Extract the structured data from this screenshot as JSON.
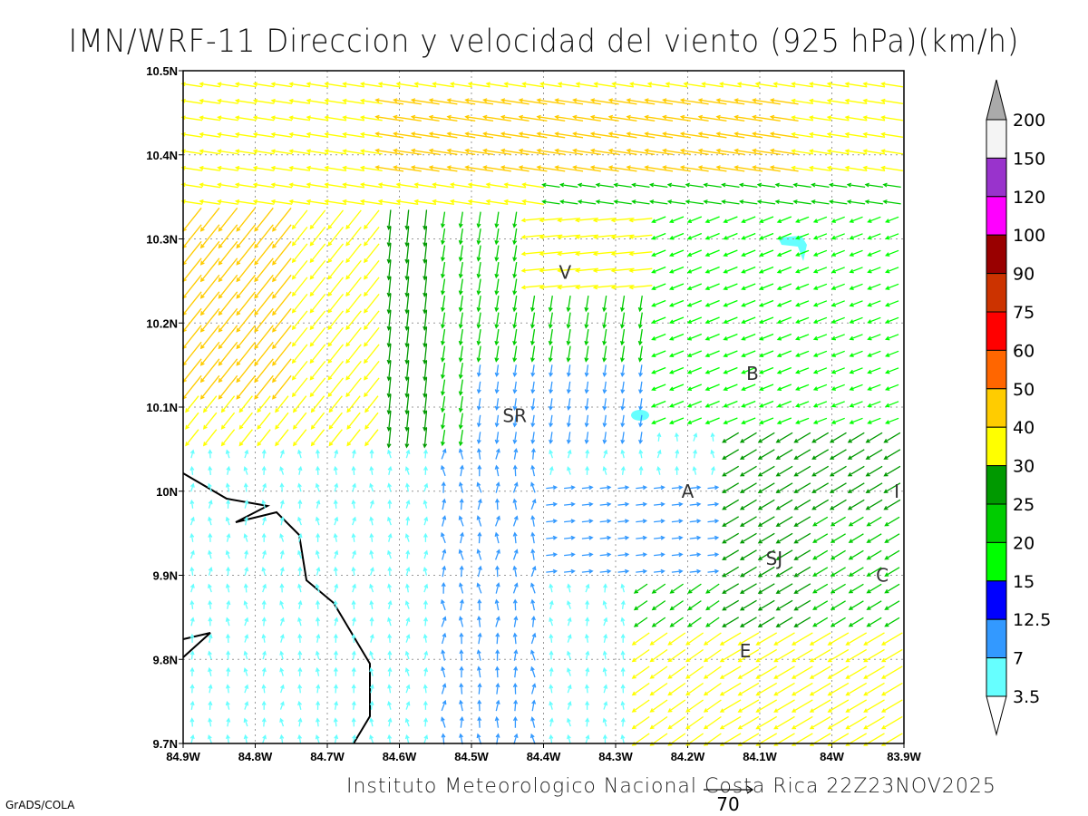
{
  "title": "IMN/WRF-11 Direccion y velocidad del viento (925 hPa)(km/h)",
  "footer": "Instituto Meteorologico Nacional Costa Rica  22Z23NOV2025",
  "credit": "GrADS/COLA",
  "reference_vector": {
    "label": "70",
    "speed": 70
  },
  "map": {
    "lon_range": [
      -84.9,
      -83.9
    ],
    "lat_range": [
      9.7,
      10.5
    ],
    "x_ticks": [
      "84.9W",
      "84.8W",
      "84.7W",
      "84.6W",
      "84.5W",
      "84.4W",
      "84.3W",
      "84.2W",
      "84.1W",
      "84W",
      "83.9W"
    ],
    "y_ticks": [
      "10.5N",
      "10.4N",
      "10.3N",
      "10.2N",
      "10.1N",
      "10N",
      "9.9N",
      "9.8N",
      "9.7N"
    ],
    "cities": [
      {
        "label": "V",
        "lon": -84.37,
        "lat": 10.26
      },
      {
        "label": "B",
        "lon": -84.11,
        "lat": 10.14
      },
      {
        "label": "SR",
        "lon": -84.44,
        "lat": 10.09
      },
      {
        "label": "A",
        "lon": -84.2,
        "lat": 10.0
      },
      {
        "label": "SJ",
        "lon": -84.08,
        "lat": 9.92
      },
      {
        "label": "C",
        "lon": -83.93,
        "lat": 9.9
      },
      {
        "label": "E",
        "lon": -84.12,
        "lat": 9.81
      },
      {
        "label": "I",
        "lon": -83.91,
        "lat": 10.0
      }
    ]
  },
  "colorbar": {
    "labels": [
      "200",
      "150",
      "120",
      "100",
      "90",
      "75",
      "60",
      "50",
      "40",
      "30",
      "25",
      "20",
      "15",
      "12.5",
      "7",
      "3.5"
    ],
    "colors": [
      "#f4f4f4",
      "#9933cc",
      "#ff00ff",
      "#990000",
      "#cc3300",
      "#ff0000",
      "#ff6600",
      "#ffcc00",
      "#ffff00",
      "#009900",
      "#00cc00",
      "#00ff00",
      "#0000ff",
      "#3399ff",
      "#66ffff"
    ],
    "over_color": "#aaaaaa",
    "under_color": "#ffffff"
  }
}
